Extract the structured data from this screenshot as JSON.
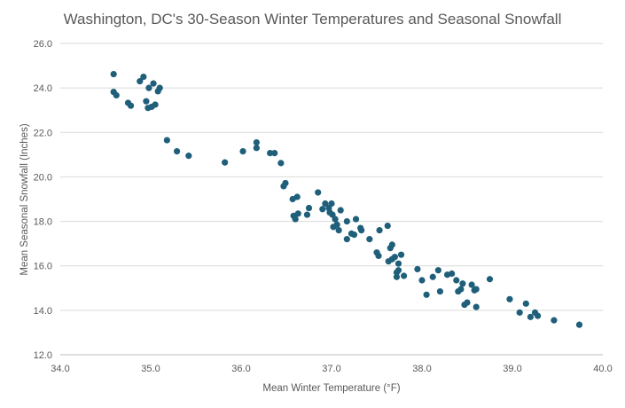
{
  "chart_data": {
    "type": "scatter",
    "title": "Washington, DC's 30-Season Winter Temperatures and Seasonal Snowfall",
    "xlabel": "Mean Winter Temperature  (°F)",
    "ylabel": "Mean Seasonal Snowfall (Inches)",
    "xlim": [
      34.0,
      40.0
    ],
    "ylim": [
      12.0,
      26.0
    ],
    "x_ticks": [
      "34.0",
      "35.0",
      "36.0",
      "37.0",
      "38.0",
      "39.0",
      "40.0"
    ],
    "y_ticks": [
      "12.0",
      "14.0",
      "16.0",
      "18.0",
      "20.0",
      "22.0",
      "24.0",
      "26.0"
    ],
    "grid": "horizontal",
    "marker_color": "#1f5f7a",
    "points": [
      [
        34.59,
        24.62
      ],
      [
        34.59,
        23.82
      ],
      [
        34.62,
        23.67
      ],
      [
        34.75,
        23.33
      ],
      [
        34.78,
        23.2
      ],
      [
        34.88,
        24.3
      ],
      [
        34.92,
        24.5
      ],
      [
        34.95,
        23.4
      ],
      [
        34.97,
        23.1
      ],
      [
        34.98,
        24.0
      ],
      [
        35.03,
        24.2
      ],
      [
        35.01,
        23.15
      ],
      [
        35.05,
        23.25
      ],
      [
        35.08,
        23.85
      ],
      [
        35.1,
        24.0
      ],
      [
        35.18,
        21.65
      ],
      [
        35.29,
        21.15
      ],
      [
        35.42,
        20.95
      ],
      [
        35.82,
        20.65
      ],
      [
        36.02,
        21.15
      ],
      [
        36.17,
        21.55
      ],
      [
        36.17,
        21.3
      ],
      [
        36.32,
        21.07
      ],
      [
        36.37,
        21.07
      ],
      [
        36.44,
        20.62
      ],
      [
        36.49,
        19.72
      ],
      [
        36.47,
        19.58
      ],
      [
        36.57,
        19.0
      ],
      [
        36.62,
        19.1
      ],
      [
        36.58,
        18.25
      ],
      [
        36.6,
        18.1
      ],
      [
        36.63,
        18.35
      ],
      [
        36.73,
        18.3
      ],
      [
        36.75,
        18.6
      ],
      [
        36.85,
        19.3
      ],
      [
        36.9,
        18.55
      ],
      [
        36.93,
        18.8
      ],
      [
        36.97,
        18.6
      ],
      [
        36.98,
        18.4
      ],
      [
        37.0,
        18.8
      ],
      [
        37.01,
        18.3
      ],
      [
        37.02,
        17.75
      ],
      [
        37.04,
        18.1
      ],
      [
        37.06,
        17.85
      ],
      [
        37.1,
        18.5
      ],
      [
        37.08,
        17.6
      ],
      [
        37.17,
        18.0
      ],
      [
        37.17,
        17.2
      ],
      [
        37.22,
        17.45
      ],
      [
        37.27,
        18.1
      ],
      [
        37.25,
        17.4
      ],
      [
        37.32,
        17.7
      ],
      [
        37.33,
        17.6
      ],
      [
        37.42,
        17.2
      ],
      [
        37.5,
        16.6
      ],
      [
        37.52,
        16.45
      ],
      [
        37.53,
        17.6
      ],
      [
        37.62,
        17.8
      ],
      [
        37.63,
        16.2
      ],
      [
        37.65,
        16.8
      ],
      [
        37.67,
        16.95
      ],
      [
        37.67,
        16.3
      ],
      [
        37.7,
        16.4
      ],
      [
        37.72,
        15.7
      ],
      [
        37.72,
        15.5
      ],
      [
        37.74,
        16.1
      ],
      [
        37.74,
        15.8
      ],
      [
        37.77,
        16.5
      ],
      [
        37.8,
        15.55
      ],
      [
        37.95,
        15.85
      ],
      [
        38.0,
        15.35
      ],
      [
        38.05,
        14.7
      ],
      [
        38.12,
        15.5
      ],
      [
        38.18,
        15.8
      ],
      [
        38.2,
        14.85
      ],
      [
        38.28,
        15.6
      ],
      [
        38.33,
        15.65
      ],
      [
        38.38,
        15.35
      ],
      [
        38.4,
        14.85
      ],
      [
        38.43,
        14.95
      ],
      [
        38.45,
        15.2
      ],
      [
        38.47,
        14.25
      ],
      [
        38.5,
        14.35
      ],
      [
        38.55,
        15.15
      ],
      [
        38.58,
        14.9
      ],
      [
        38.6,
        14.95
      ],
      [
        38.6,
        14.15
      ],
      [
        38.75,
        15.4
      ],
      [
        38.97,
        14.5
      ],
      [
        39.08,
        13.9
      ],
      [
        39.15,
        14.3
      ],
      [
        39.2,
        13.7
      ],
      [
        39.25,
        13.9
      ],
      [
        39.28,
        13.75
      ],
      [
        39.46,
        13.55
      ],
      [
        39.74,
        13.35
      ]
    ]
  }
}
